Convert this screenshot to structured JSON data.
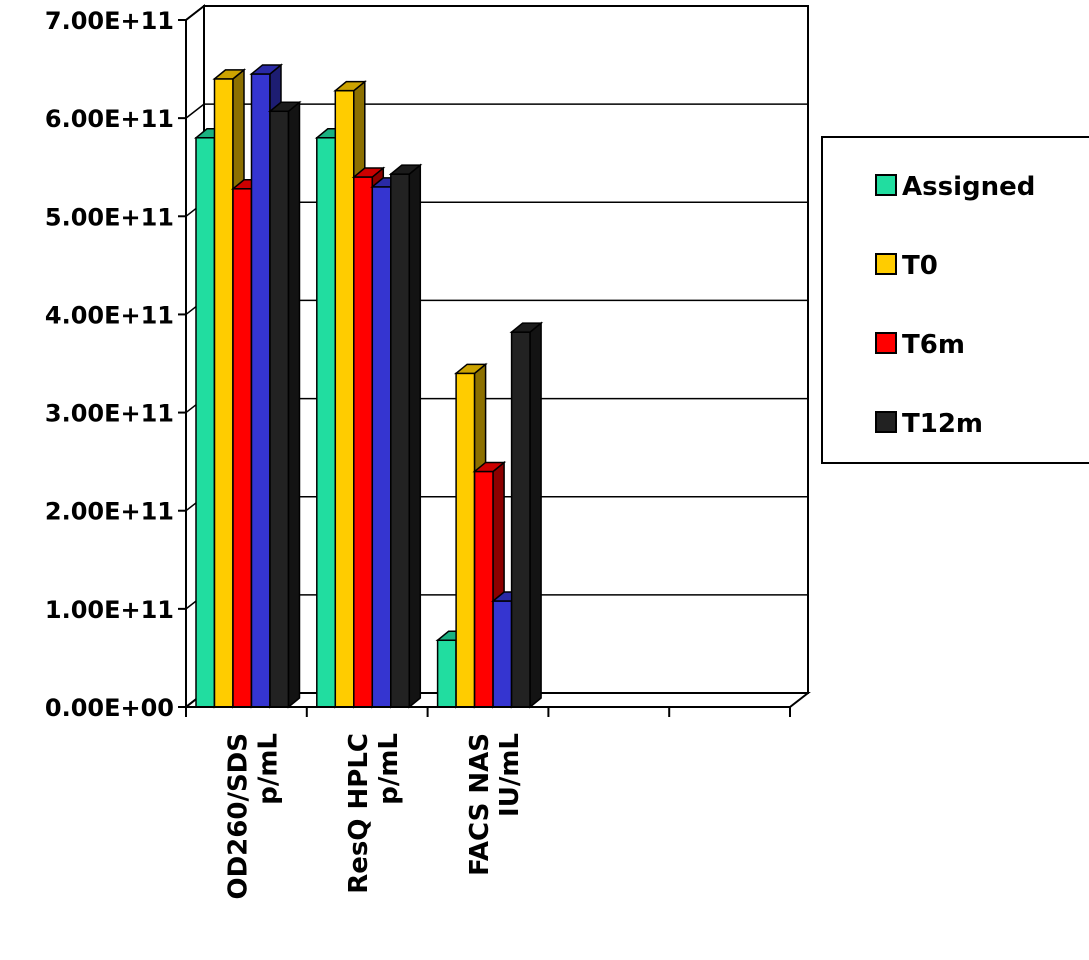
{
  "chart_data": {
    "type": "bar",
    "categories": [
      [
        "OD260/SDS",
        "p/mL"
      ],
      [
        "ResQ HPLC",
        "p/mL"
      ],
      [
        "FACS NAS",
        "IU/mL"
      ],
      [
        "",
        ""
      ],
      [
        "",
        ""
      ]
    ],
    "series": [
      {
        "name": "Assigned",
        "color": "#21DDA0",
        "values": [
          580000000000.0,
          580000000000.0,
          68000000000.0,
          null,
          null
        ]
      },
      {
        "name": "T0",
        "color": "#FFCC00",
        "values": [
          640000000000.0,
          628000000000.0,
          340000000000.0,
          null,
          null
        ]
      },
      {
        "name": "T6m",
        "color": "#FF0000",
        "values": [
          528000000000.0,
          540000000000.0,
          240000000000.0,
          null,
          null
        ]
      },
      {
        "name": "T12m",
        "color": "#222222",
        "values": [
          607000000000.0,
          543000000000.0,
          382000000000.0,
          null,
          null
        ]
      },
      {
        "name": "",
        "color": "#3535D0",
        "values": [
          645000000000.0,
          530000000000.0,
          108000000000.0,
          null,
          null
        ]
      }
    ],
    "y_tick_labels": [
      "0.00E+00",
      "1.00E+11",
      "2.00E+11",
      "3.00E+11",
      "4.00E+11",
      "5.00E+11",
      "6.00E+11",
      "7.00E+11"
    ],
    "ylim": [
      0,
      700000000000.0
    ],
    "grid": true,
    "legend": {
      "placement": "right",
      "entries": [
        "Assigned",
        "T0",
        "T6m",
        "T12m"
      ]
    },
    "bar_order": [
      "Assigned",
      "T0",
      "T6m",
      "",
      "T12m"
    ],
    "title": "",
    "xlabel": "",
    "ylabel": ""
  }
}
